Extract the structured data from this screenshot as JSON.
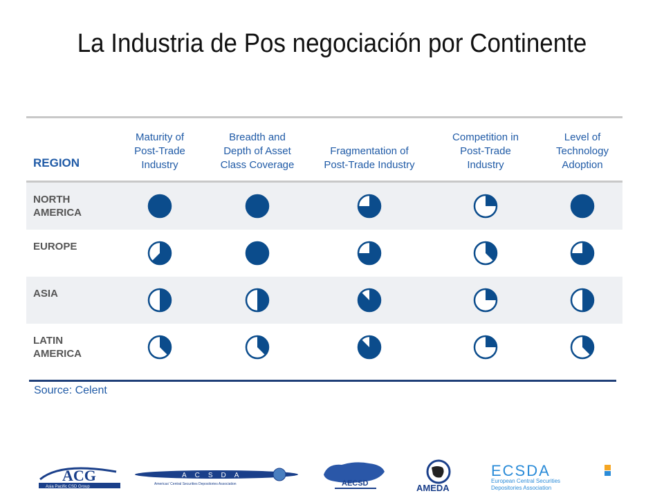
{
  "title": "La Industria de Pos negociación por Continente",
  "table": {
    "region_header": "REGION",
    "columns": [
      "Maturity of\nPost-Trade\nIndustry",
      "Breadth and\nDepth of Asset\nClass Coverage",
      "Fragmentation of\nPost-Trade Industry",
      "Competition in\nPost-Trade\nIndustry",
      "Level of\nTechnology\nAdoption"
    ],
    "rows": [
      {
        "region": "NORTH\nAMERICA",
        "ratings": [
          1.0,
          1.0,
          0.75,
          0.25,
          1.0
        ]
      },
      {
        "region": "EUROPE",
        "ratings": [
          0.625,
          1.0,
          0.75,
          0.375,
          0.75
        ]
      },
      {
        "region": "ASIA",
        "ratings": [
          0.5,
          0.5,
          0.875,
          0.25,
          0.5
        ]
      },
      {
        "region": "LATIN\nAMERICA",
        "ratings": [
          0.375,
          0.375,
          0.875,
          0.25,
          0.375
        ]
      }
    ],
    "source": "Source: Celent"
  },
  "colors": {
    "ball": "#0b4c8c",
    "header_text": "#1f5aa6",
    "row_shade": "#eef0f3"
  },
  "logos": {
    "apcsd": "ACG",
    "apcsd_sub": "Asia Pacific CSD Group",
    "acsda": "ACSDA",
    "acsda_sub": "Americas' Central Securities Depositories Association",
    "aecsd": "AECSD",
    "ameda": "AMEDA",
    "ecsda": "ECSDA",
    "ecsda_sub1": "European Central Securities",
    "ecsda_sub2": "Depositories Association"
  }
}
